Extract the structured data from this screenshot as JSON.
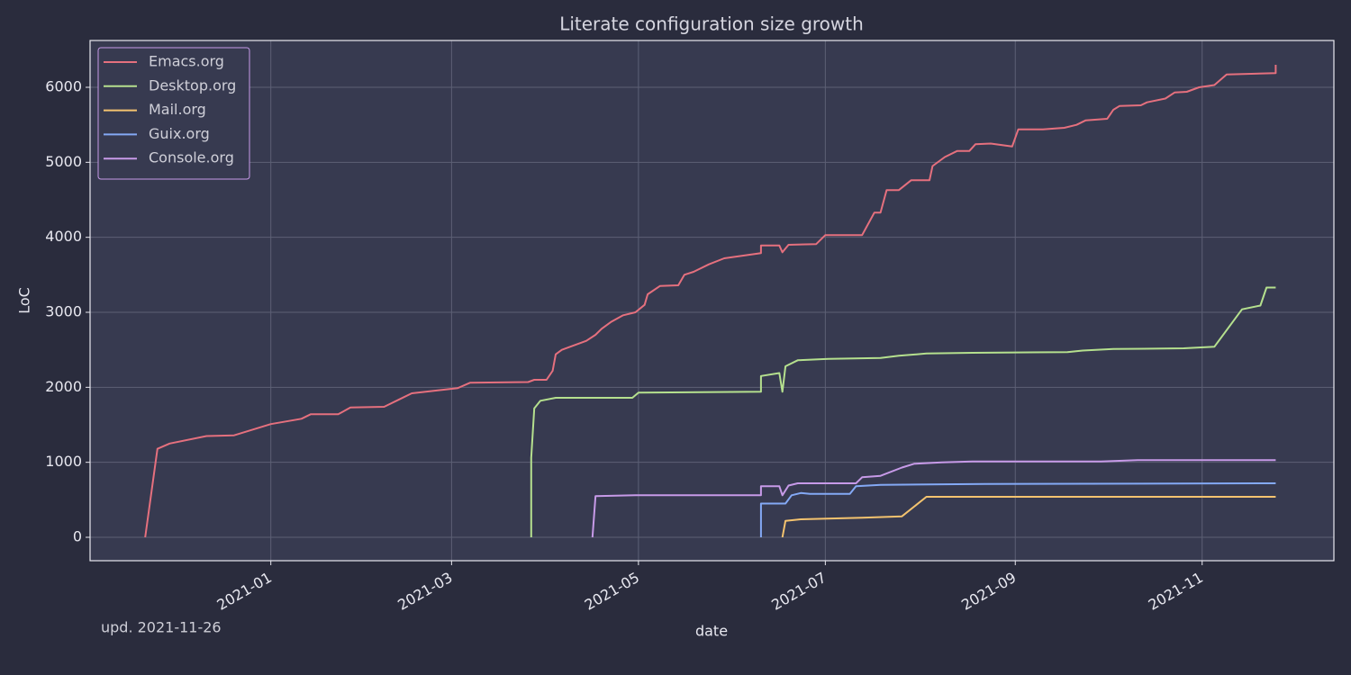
{
  "chart_data": {
    "type": "line",
    "title": "Literate configuration size growth",
    "xlabel": "date",
    "ylabel": "LoC",
    "annotation": "upd. 2021-11-26",
    "xlim": [
      "2020-11-03",
      "2021-12-14"
    ],
    "xticks": [
      "2021-01",
      "2021-03",
      "2021-05",
      "2021-07",
      "2021-09",
      "2021-11"
    ],
    "ylim": [
      -312,
      6624
    ],
    "yticks": [
      0,
      1000,
      2000,
      3000,
      4000,
      5000,
      6000
    ],
    "grid": true,
    "legend": "upper left",
    "series": [
      {
        "name": "Emacs.org",
        "color": "#e5707e",
        "x": [
          "2020-11-21",
          "2020-11-25",
          "2020-11-29",
          "2020-12-11",
          "2020-12-20",
          "2021-01-01",
          "2021-01-11",
          "2021-01-14",
          "2021-01-23",
          "2021-01-27",
          "2021-02-07",
          "2021-02-12",
          "2021-02-16",
          "2021-03-03",
          "2021-03-07",
          "2021-03-26",
          "2021-03-28",
          "2021-04-01",
          "2021-04-03",
          "2021-04-04",
          "2021-04-06",
          "2021-04-10",
          "2021-04-14",
          "2021-04-17",
          "2021-04-19",
          "2021-04-22",
          "2021-04-26",
          "2021-04-30",
          "2021-05-03",
          "2021-05-04",
          "2021-05-08",
          "2021-05-14",
          "2021-05-16",
          "2021-05-19",
          "2021-05-24",
          "2021-05-29",
          "2021-06-10",
          "2021-06-10",
          "2021-06-16",
          "2021-06-17",
          "2021-06-19",
          "2021-06-28",
          "2021-07-01",
          "2021-07-13",
          "2021-07-17",
          "2021-07-19",
          "2021-07-21",
          "2021-07-25",
          "2021-07-29",
          "2021-08-04",
          "2021-08-05",
          "2021-08-09",
          "2021-08-13",
          "2021-08-17",
          "2021-08-19",
          "2021-08-24",
          "2021-08-31",
          "2021-09-02",
          "2021-09-10",
          "2021-09-17",
          "2021-09-21",
          "2021-09-24",
          "2021-10-01",
          "2021-10-03",
          "2021-10-05",
          "2021-10-12",
          "2021-10-14",
          "2021-10-20",
          "2021-10-23",
          "2021-10-27",
          "2021-10-31",
          "2021-11-05",
          "2021-11-09",
          "2021-11-17",
          "2021-11-25",
          "2021-11-25"
        ],
        "values": [
          0,
          1180,
          1250,
          1350,
          1360,
          1510,
          1580,
          1640,
          1640,
          1730,
          1740,
          1840,
          1920,
          1990,
          2060,
          2070,
          2100,
          2100,
          2220,
          2440,
          2500,
          2560,
          2620,
          2700,
          2780,
          2870,
          2960,
          3000,
          3100,
          3240,
          3350,
          3360,
          3500,
          3540,
          3640,
          3720,
          3790,
          3890,
          3890,
          3800,
          3900,
          3910,
          4030,
          4030,
          4330,
          4330,
          4630,
          4630,
          4760,
          4760,
          4950,
          5070,
          5150,
          5150,
          5240,
          5250,
          5210,
          5440,
          5440,
          5460,
          5500,
          5560,
          5580,
          5700,
          5750,
          5760,
          5800,
          5850,
          5930,
          5940,
          6000,
          6030,
          6170,
          6180,
          6190,
          6300
        ]
      },
      {
        "name": "Desktop.org",
        "color": "#b5e08e",
        "x": [
          "2021-03-27",
          "2021-03-27",
          "2021-03-28",
          "2021-03-30",
          "2021-04-04",
          "2021-04-29",
          "2021-05-01",
          "2021-06-10",
          "2021-06-10",
          "2021-06-16",
          "2021-06-17",
          "2021-06-18",
          "2021-06-22",
          "2021-07-02",
          "2021-07-19",
          "2021-07-25",
          "2021-08-03",
          "2021-08-18",
          "2021-09-18",
          "2021-09-23",
          "2021-10-03",
          "2021-10-26",
          "2021-11-05",
          "2021-11-14",
          "2021-11-20",
          "2021-11-22",
          "2021-11-25"
        ],
        "values": [
          0,
          1060,
          1720,
          1820,
          1860,
          1860,
          1930,
          1940,
          2150,
          2190,
          1940,
          2280,
          2360,
          2380,
          2390,
          2420,
          2450,
          2460,
          2470,
          2490,
          2510,
          2520,
          2540,
          3040,
          3090,
          3330,
          3330
        ]
      },
      {
        "name": "Mail.org",
        "color": "#f4c36f",
        "x": [
          "2021-06-17",
          "2021-06-18",
          "2021-06-23",
          "2021-07-13",
          "2021-07-26",
          "2021-08-03",
          "2021-11-25"
        ],
        "values": [
          0,
          220,
          240,
          260,
          280,
          540,
          540
        ]
      },
      {
        "name": "Guix.org",
        "color": "#84a9f5",
        "x": [
          "2021-06-10",
          "2021-06-10",
          "2021-06-18",
          "2021-06-20",
          "2021-06-23",
          "2021-06-26",
          "2021-07-09",
          "2021-07-11",
          "2021-07-19",
          "2021-08-22",
          "2021-11-25"
        ],
        "values": [
          0,
          450,
          450,
          560,
          590,
          580,
          580,
          680,
          700,
          710,
          720
        ]
      },
      {
        "name": "Console.org",
        "color": "#c79ae8",
        "x": [
          "2021-04-16",
          "2021-04-17",
          "2021-04-30",
          "2021-06-10",
          "2021-06-10",
          "2021-06-16",
          "2021-06-17",
          "2021-06-19",
          "2021-06-22",
          "2021-07-11",
          "2021-07-13",
          "2021-07-19",
          "2021-07-26",
          "2021-07-30",
          "2021-08-08",
          "2021-08-18",
          "2021-09-29",
          "2021-10-11",
          "2021-11-25"
        ],
        "values": [
          0,
          550,
          560,
          560,
          680,
          680,
          560,
          690,
          720,
          720,
          800,
          820,
          930,
          980,
          1000,
          1010,
          1010,
          1030,
          1030
        ]
      }
    ]
  }
}
